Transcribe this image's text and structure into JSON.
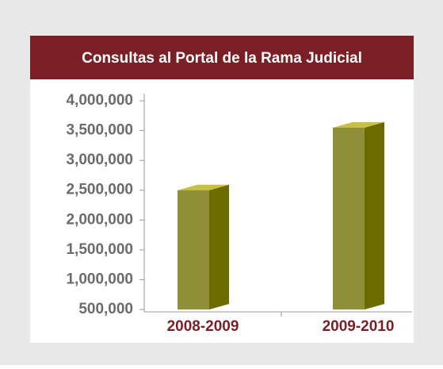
{
  "chart_data": {
    "type": "bar",
    "title": "Consultas al Portal de la Rama Judicial",
    "categories": [
      "2008-2009",
      "2009-2010"
    ],
    "values": [
      2500000,
      3550000
    ],
    "color": "#8f8f3a",
    "ylim": [
      500000,
      4000000
    ],
    "yticks": [
      {
        "value": 500000,
        "label": "500,000"
      },
      {
        "value": 1000000,
        "label": "1,000,000"
      },
      {
        "value": 1500000,
        "label": "1,500,000"
      },
      {
        "value": 2000000,
        "label": "2,000,000"
      },
      {
        "value": 2500000,
        "label": "2,500,000"
      },
      {
        "value": 3000000,
        "label": "3,000,000"
      },
      {
        "value": 3500000,
        "label": "3,500,000"
      },
      {
        "value": 4000000,
        "label": "4,000,000"
      }
    ]
  }
}
